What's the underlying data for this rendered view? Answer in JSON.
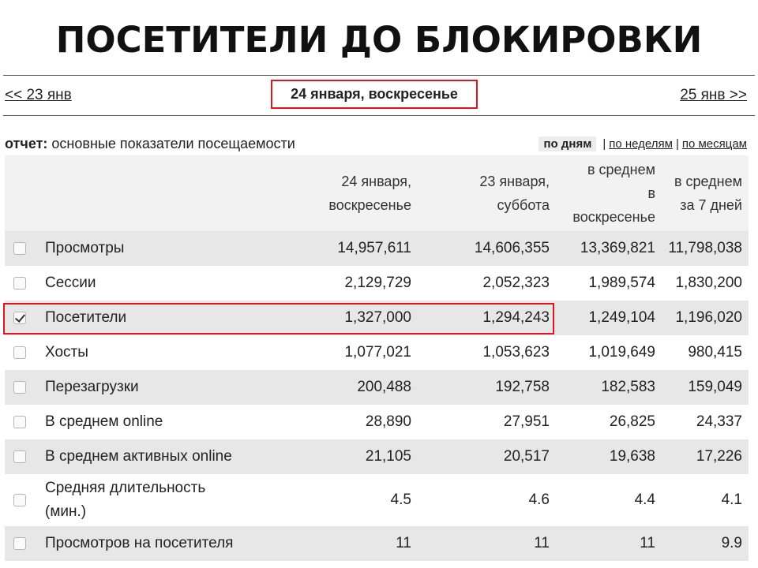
{
  "slide": {
    "title": "ПОСЕТИТЕЛИ ДО БЛОКИРОВКИ"
  },
  "nav": {
    "prev": "<< 23 янв",
    "current": "24 января, воскресенье",
    "next": "25 янв >>"
  },
  "report": {
    "label": "отчет:",
    "name": "основные показатели посещаемости",
    "period_active": "по дням",
    "period_weeks": "по неделям",
    "period_months": "по месяцам",
    "separator": "|"
  },
  "table": {
    "headers": [
      [
        "24 января,",
        "воскресенье"
      ],
      [
        "23 января,",
        "суббота"
      ],
      [
        "в среднем",
        "в",
        "воскресенье"
      ],
      [
        "в среднем",
        "за 7 дней"
      ]
    ],
    "rows": [
      {
        "label": "Просмотры",
        "checked": false,
        "values": [
          "14,957,611",
          "14,606,355",
          "13,369,821",
          "11,798,038"
        ]
      },
      {
        "label": "Сессии",
        "checked": false,
        "values": [
          "2,129,729",
          "2,052,323",
          "1,989,574",
          "1,830,200"
        ]
      },
      {
        "label": "Посетители",
        "checked": true,
        "values": [
          "1,327,000",
          "1,294,243",
          "1,249,104",
          "1,196,020"
        ]
      },
      {
        "label": "Хосты",
        "checked": false,
        "values": [
          "1,077,021",
          "1,053,623",
          "1,019,649",
          "980,415"
        ]
      },
      {
        "label": "Перезагрузки",
        "checked": false,
        "values": [
          "200,488",
          "192,758",
          "182,583",
          "159,049"
        ]
      },
      {
        "label": "В среднем online",
        "checked": false,
        "values": [
          "28,890",
          "27,951",
          "26,825",
          "24,337"
        ]
      },
      {
        "label": "В среднем активных online",
        "checked": false,
        "values": [
          "21,105",
          "20,517",
          "19,638",
          "17,226"
        ]
      },
      {
        "label_lines": [
          "Средняя длительность",
          "(мин.)"
        ],
        "checked": false,
        "values": [
          "4.5",
          "4.6",
          "4.4",
          "4.1"
        ]
      },
      {
        "label": "Просмотров на посетителя",
        "checked": false,
        "values": [
          "11",
          "11",
          "11",
          "9.9"
        ]
      }
    ]
  },
  "colors": {
    "highlight": "#e0151d",
    "row_shade": "#e7e7e7",
    "header_bg": "#f2f2f2"
  }
}
